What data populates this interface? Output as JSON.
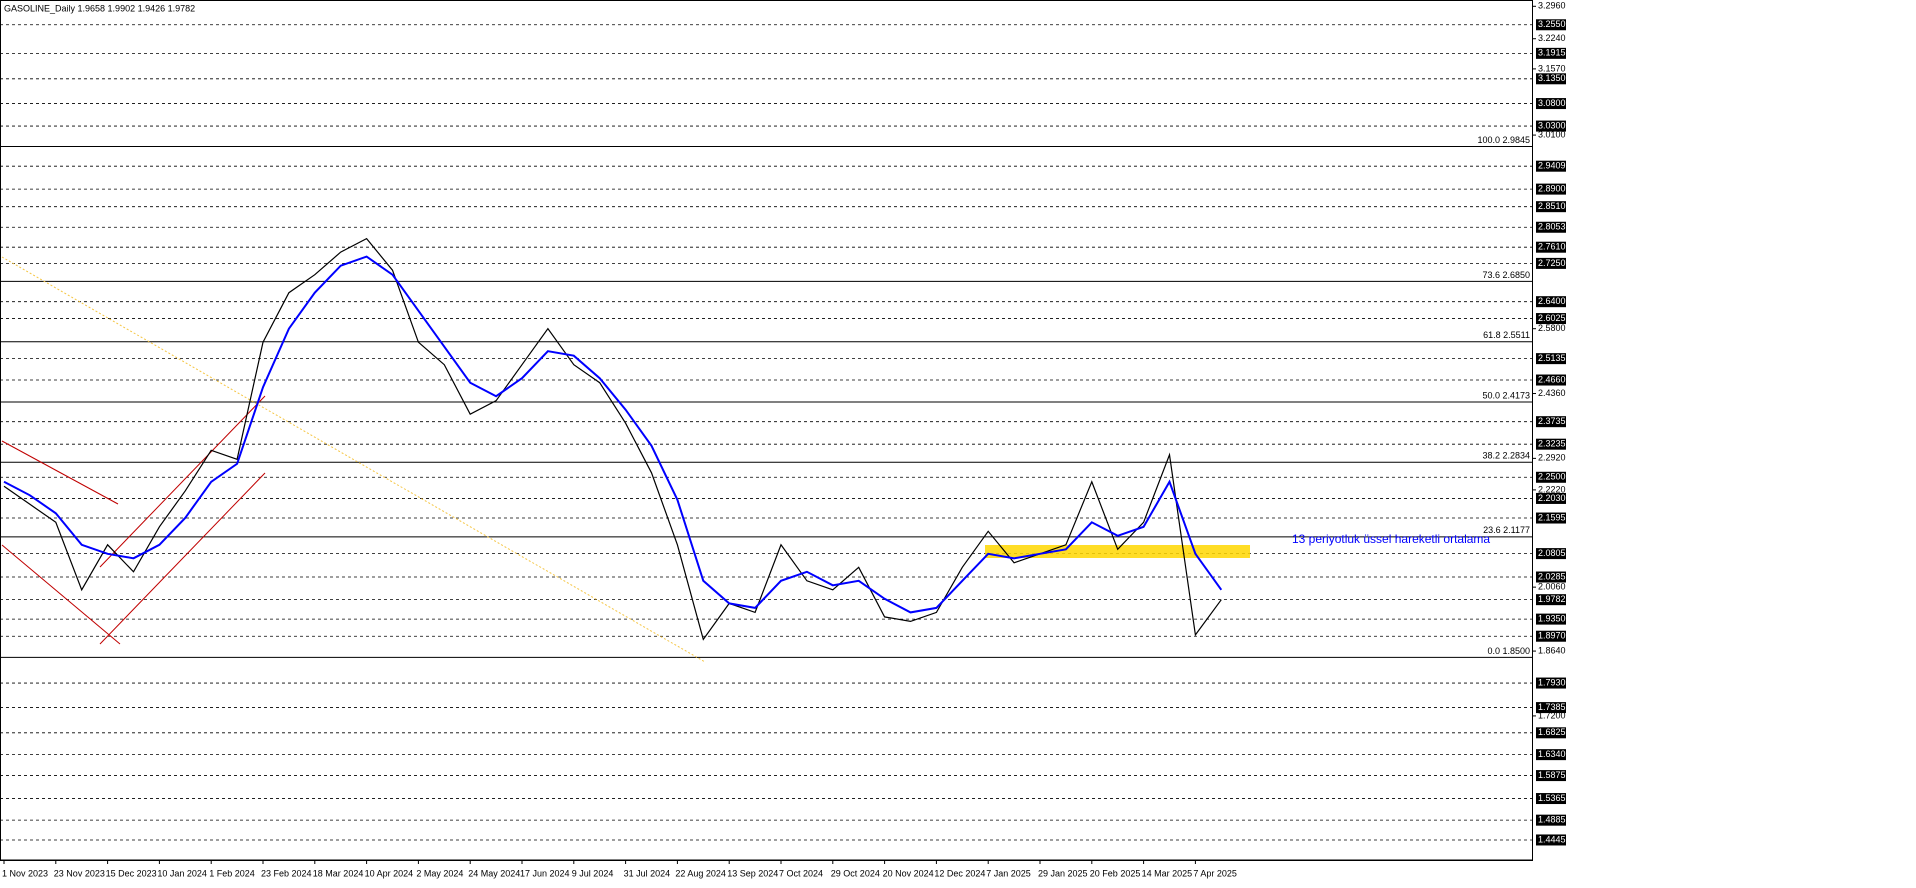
{
  "chart_data": {
    "type": "line",
    "title": "GASOLINE_Daily  1.9658 1.9902 1.9426 1.9782",
    "annotation": "13 periyotluk üssel hareketli ortalama",
    "categories": [
      "1 Nov 2023",
      null,
      "23 Nov 2023",
      null,
      "15 Dec 2023",
      null,
      "10 Jan 2024",
      null,
      "1 Feb 2024",
      null,
      "23 Feb 2024",
      null,
      "18 Mar 2024",
      null,
      "10 Apr 2024",
      null,
      "2 May 2024",
      null,
      "24 May 2024",
      null,
      "17 Jun 2024",
      null,
      "9 Jul 2024",
      null,
      "31 Jul 2024",
      null,
      "22 Aug 2024",
      null,
      "13 Sep 2024",
      null,
      "7 Oct 2024",
      null,
      "29 Oct 2024",
      null,
      "20 Nov 2024",
      null,
      "12 Dec 2024",
      null,
      "7 Jan 2025",
      null,
      "29 Jan 2025",
      null,
      "20 Feb 2025",
      null,
      "14 Mar 2025",
      null,
      "7 Apr 2025",
      null
    ],
    "series": [
      {
        "color": "#000000",
        "values": [
          2.23,
          2.19,
          2.15,
          2.0,
          2.1,
          2.04,
          2.14,
          2.22,
          2.31,
          2.29,
          2.55,
          2.66,
          2.7,
          2.75,
          2.78,
          2.71,
          2.55,
          2.5,
          2.39,
          2.42,
          2.5,
          2.58,
          2.5,
          2.46,
          2.37,
          2.26,
          2.1,
          1.89,
          1.97,
          1.95,
          2.1,
          2.02,
          2.0,
          2.05,
          1.94,
          1.93,
          1.95,
          2.05,
          2.13,
          2.06,
          2.08,
          2.1,
          2.24,
          2.09,
          2.15,
          2.3,
          1.9,
          1.978
        ]
      },
      {
        "color": "#0000ff",
        "values": [
          2.24,
          2.21,
          2.17,
          2.1,
          2.08,
          2.07,
          2.1,
          2.16,
          2.24,
          2.28,
          2.45,
          2.58,
          2.66,
          2.72,
          2.74,
          2.7,
          2.62,
          2.54,
          2.46,
          2.43,
          2.47,
          2.53,
          2.52,
          2.47,
          2.4,
          2.32,
          2.2,
          2.02,
          1.97,
          1.96,
          2.02,
          2.04,
          2.01,
          2.02,
          1.98,
          1.95,
          1.96,
          2.02,
          2.08,
          2.07,
          2.08,
          2.09,
          2.15,
          2.12,
          2.14,
          2.24,
          2.08,
          2.0
        ]
      }
    ],
    "ylim": [
      1.4,
      3.31
    ],
    "yticks": [
      {
        "value": 3.296,
        "label": "3.2960"
      },
      {
        "value": 3.224,
        "label": "3.2240"
      },
      {
        "value": 3.157,
        "label": "3.1570"
      },
      {
        "value": 3.01,
        "label": "3.0100"
      },
      {
        "value": 2.58,
        "label": "2.5800"
      },
      {
        "value": 2.436,
        "label": "2.4360"
      },
      {
        "value": 2.292,
        "label": "2.2920"
      },
      {
        "value": 2.222,
        "label": "2.2220"
      },
      {
        "value": 2.006,
        "label": "2.0060"
      },
      {
        "value": 1.864,
        "label": "1.8640"
      },
      {
        "value": 1.72,
        "label": "1.7200"
      }
    ],
    "levels": [
      {
        "value": 3.255,
        "label": "3.2550"
      },
      {
        "value": 3.1915,
        "label": "3.1915"
      },
      {
        "value": 3.135,
        "label": "3.1350"
      },
      {
        "value": 3.08,
        "label": "3.0800"
      },
      {
        "value": 3.03,
        "label": "3.0300"
      },
      {
        "value": 2.9409,
        "label": "2.9409"
      },
      {
        "value": 2.89,
        "label": "2.8900"
      },
      {
        "value": 2.851,
        "label": "2.8510"
      },
      {
        "value": 2.8053,
        "label": "2.8053"
      },
      {
        "value": 2.761,
        "label": "2.7610"
      },
      {
        "value": 2.725,
        "label": "2.7250"
      },
      {
        "value": 2.64,
        "label": "2.6400"
      },
      {
        "value": 2.6025,
        "label": "2.6025"
      },
      {
        "value": 2.5135,
        "label": "2.5135"
      },
      {
        "value": 2.466,
        "label": "2.4660"
      },
      {
        "value": 2.3735,
        "label": "2.3735"
      },
      {
        "value": 2.3235,
        "label": "2.3235"
      },
      {
        "value": 2.25,
        "label": "2.2500"
      },
      {
        "value": 2.203,
        "label": "2.2030"
      },
      {
        "value": 2.1595,
        "label": "2.1595"
      },
      {
        "value": 2.0805,
        "label": "2.0805"
      },
      {
        "value": 2.0285,
        "label": "2.0285"
      },
      {
        "value": 1.9782,
        "label": "1.9782"
      },
      {
        "value": 1.935,
        "label": "1.9350"
      },
      {
        "value": 1.897,
        "label": "1.8970"
      },
      {
        "value": 1.793,
        "label": "1.7930"
      },
      {
        "value": 1.7385,
        "label": "1.7385"
      },
      {
        "value": 1.6825,
        "label": "1.6825"
      },
      {
        "value": 1.634,
        "label": "1.6340"
      },
      {
        "value": 1.5875,
        "label": "1.5875"
      },
      {
        "value": 1.5365,
        "label": "1.5365"
      },
      {
        "value": 1.4885,
        "label": "1.4885"
      },
      {
        "value": 1.4445,
        "label": "1.4445"
      }
    ],
    "fibs": [
      {
        "value": 2.9845,
        "label": "100.0 2.9845"
      },
      {
        "value": 2.685,
        "label": "73.6 2.6850"
      },
      {
        "value": 2.5511,
        "label": "61.8 2.5511"
      },
      {
        "value": 2.4173,
        "label": "50.0 2.4173"
      },
      {
        "value": 2.2834,
        "label": "38.2 2.2834"
      },
      {
        "value": 2.1177,
        "label": "23.6 2.1177"
      },
      {
        "value": 1.85,
        "label": "0.0 1.8500"
      }
    ]
  }
}
